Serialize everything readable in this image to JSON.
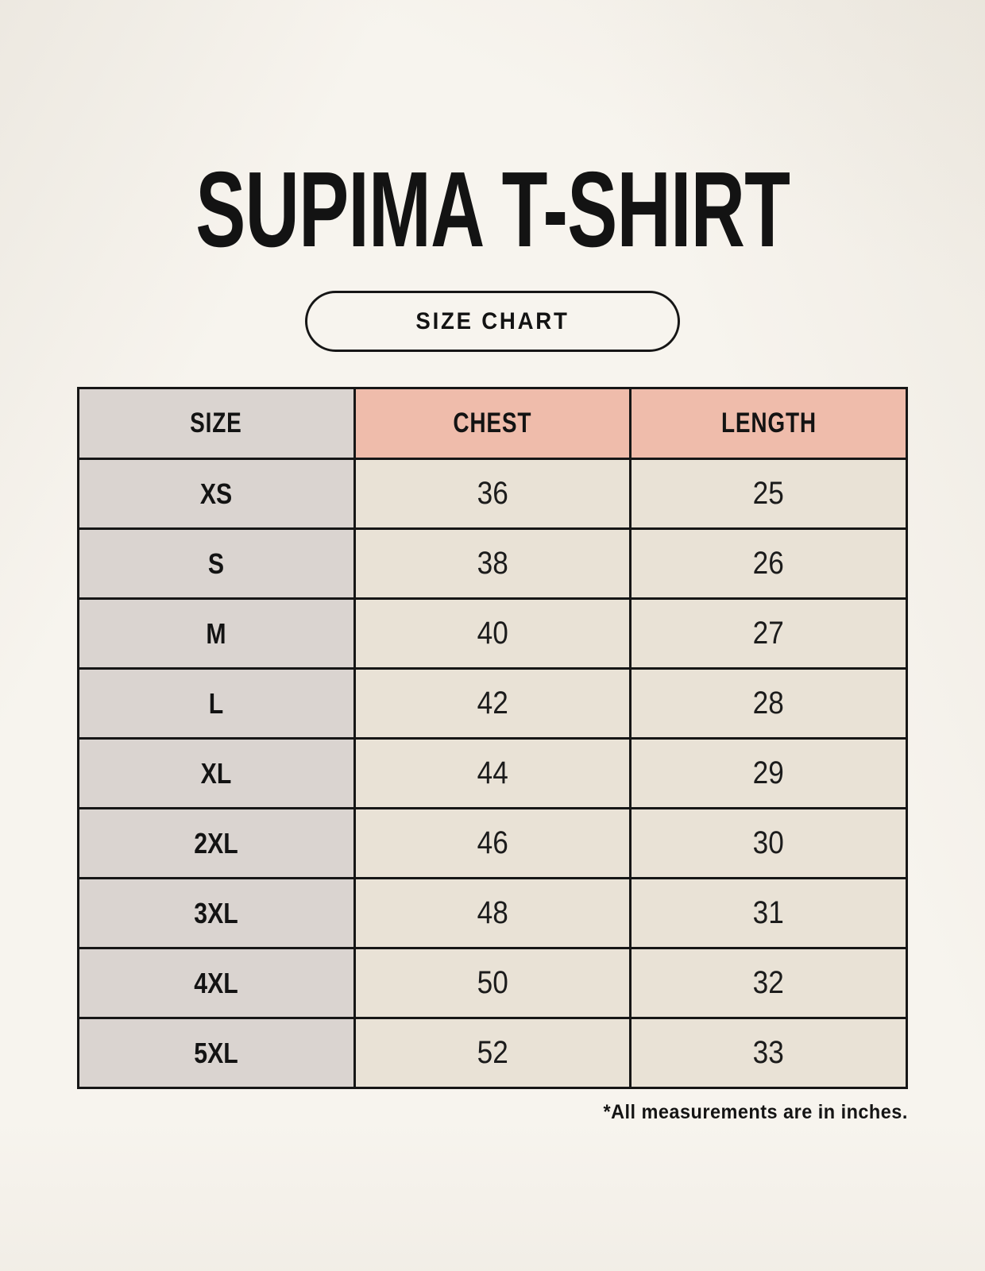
{
  "page": {
    "title": "SUPIMA T-SHIRT",
    "size_chart_label": "SIZE CHART",
    "footnote": "*All measurements are in inches."
  },
  "colors": {
    "page_background": "#f7f4ee",
    "header_accent_pink": "#efbcab",
    "size_column_gray": "#dad4d0",
    "data_cell_beige": "#e9e2d6",
    "table_border": "#161616",
    "text": "#131313"
  },
  "size_table": {
    "columns": [
      "SIZE",
      "CHEST",
      "LENGTH"
    ],
    "rows": [
      {
        "size": "XS",
        "chest": "36",
        "length": "25"
      },
      {
        "size": "S",
        "chest": "38",
        "length": "26"
      },
      {
        "size": "M",
        "chest": "40",
        "length": "27"
      },
      {
        "size": "L",
        "chest": "42",
        "length": "28"
      },
      {
        "size": "XL",
        "chest": "44",
        "length": "29"
      },
      {
        "size": "2XL",
        "chest": "46",
        "length": "30"
      },
      {
        "size": "3XL",
        "chest": "48",
        "length": "31"
      },
      {
        "size": "4XL",
        "chest": "50",
        "length": "32"
      },
      {
        "size": "5XL",
        "chest": "52",
        "length": "33"
      }
    ]
  }
}
